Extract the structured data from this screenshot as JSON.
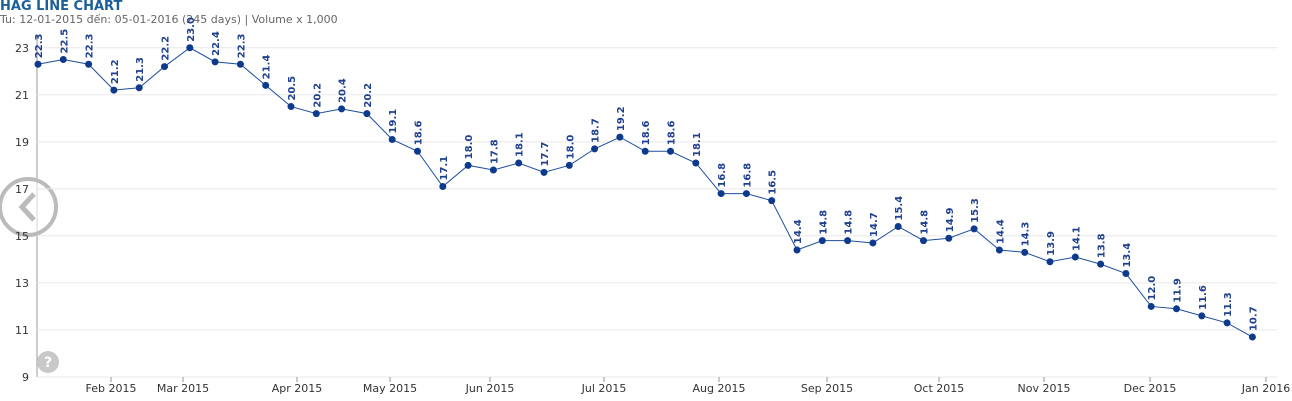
{
  "chart_data": {
    "type": "line",
    "title": "HAG LINE CHART",
    "subtitle": "Tu: 12-01-2015 đến: 05-01-2016 (245 days) | Volume x 1,000",
    "categories": [
      null,
      null,
      null,
      null,
      null,
      null,
      null,
      null,
      null,
      null,
      null,
      null,
      null,
      null,
      null,
      null,
      null,
      null,
      null,
      null,
      null,
      null,
      null,
      null,
      null,
      null,
      null,
      null,
      null,
      null,
      null,
      null,
      null,
      null,
      null,
      null,
      null,
      null,
      null,
      null,
      null,
      null,
      null,
      null,
      null,
      null,
      null,
      null,
      null
    ],
    "x_labels": [
      "Feb 2015",
      "Mar 2015",
      "Apr 2015",
      "May 2015",
      "Jun 2015",
      "Jul 2015",
      "Aug 2015",
      "Sep 2015",
      "Oct 2015",
      "Nov 2015",
      "Dec 2015",
      "Jan 2016"
    ],
    "series": [
      {
        "name": "HAG",
        "color": "#1f4e9c",
        "values": [
          22.3,
          22.5,
          22.3,
          21.2,
          21.3,
          22.2,
          23.0,
          22.4,
          22.3,
          21.4,
          20.5,
          20.2,
          20.4,
          20.2,
          19.1,
          18.6,
          17.1,
          18.0,
          17.8,
          18.1,
          17.7,
          18.0,
          18.7,
          19.2,
          18.6,
          18.6,
          18.1,
          16.8,
          16.8,
          16.5,
          14.4,
          14.8,
          14.8,
          14.7,
          15.4,
          14.8,
          14.9,
          15.3,
          14.4,
          14.3,
          13.9,
          14.1,
          13.8,
          13.4,
          12.0,
          11.9,
          11.6,
          11.3,
          10.7
        ],
        "value_labels": [
          "22.3",
          "22.5",
          "22.3",
          "21.2",
          "21.3",
          "22.2",
          "23.0",
          "22.4",
          "22.3",
          "21.4",
          "20.5",
          "20.2",
          "20.4",
          "20.2",
          "19.1",
          "18.6",
          "17.1",
          "18.0",
          "17.8",
          "18.1",
          "17.7",
          "18.0",
          "18.7",
          "19.2",
          "18.6",
          "18.6",
          "18.1",
          "16.8",
          "16.8",
          "16.5",
          "14.4",
          "14.8",
          "14.8",
          "14.7",
          "15.4",
          "14.8",
          "14.9",
          "15.3",
          "14.4",
          "14.3",
          "13.9",
          "14.1",
          "13.8",
          "13.4",
          "12.0",
          "11.9",
          "11.6",
          "11.3",
          "10.7"
        ]
      }
    ],
    "ylim": [
      9,
      23.5
    ],
    "yticks": [
      9,
      11,
      13,
      15,
      17,
      19,
      21,
      23
    ],
    "grid": true
  }
}
